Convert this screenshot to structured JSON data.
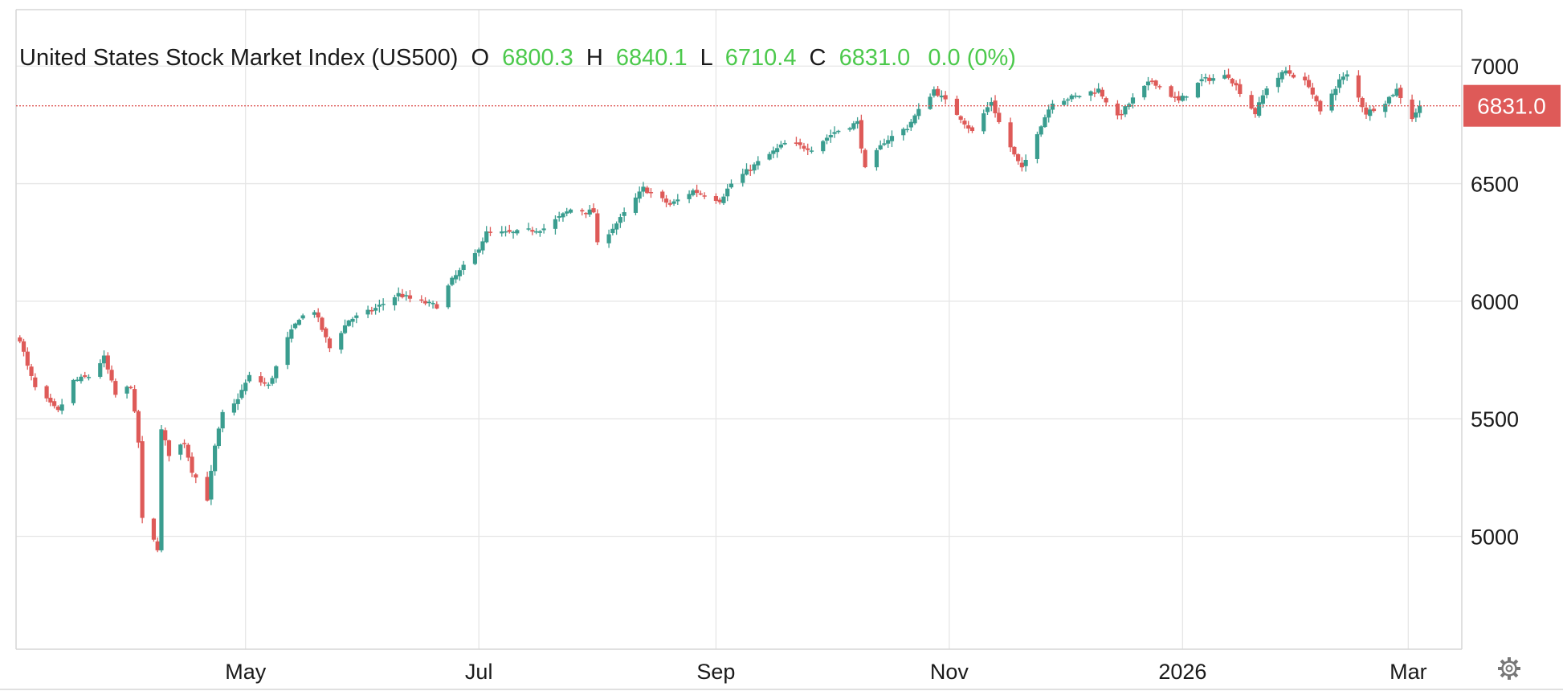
{
  "chart_data": {
    "type": "candlestick",
    "title": "United States Stock Market Index (US500)",
    "ohlc_header": {
      "o_label": "O",
      "o_value": "6800.3",
      "h_label": "H",
      "h_value": "6840.1",
      "l_label": "L",
      "l_value": "6710.4",
      "c_label": "C",
      "c_value": "6831.0",
      "change": "0.0 (0%)"
    },
    "last_price": 6831.0,
    "last_price_label": "6831.0",
    "y_ticks": [
      5000,
      5500,
      6000,
      6500,
      7000
    ],
    "y_tick_labels": [
      "5000",
      "5500",
      "6000",
      "6500",
      "7000"
    ],
    "ylim": [
      4520,
      7240
    ],
    "x_ticks": [
      {
        "label": "May",
        "date": "2025-05-01"
      },
      {
        "label": "Jul",
        "date": "2025-07-01"
      },
      {
        "label": "Sep",
        "date": "2025-09-01"
      },
      {
        "label": "Nov",
        "date": "2025-11-01"
      },
      {
        "label": "2026",
        "date": "2026-01-01"
      },
      {
        "label": "Mar",
        "date": "2026-03-01"
      }
    ],
    "xlim": [
      "2025-03-02",
      "2026-03-15"
    ],
    "price_path": [
      [
        "2025-03-03",
        5840
      ],
      [
        "2025-03-05",
        5720
      ],
      [
        "2025-03-07",
        5630
      ],
      [
        "2025-03-11",
        5560
      ],
      [
        "2025-03-13",
        5530
      ],
      [
        "2025-03-17",
        5660
      ],
      [
        "2025-03-21",
        5680
      ],
      [
        "2025-03-25",
        5760
      ],
      [
        "2025-03-28",
        5600
      ],
      [
        "2025-04-01",
        5640
      ],
      [
        "2025-04-03",
        5400
      ],
      [
        "2025-04-04",
        5070
      ],
      [
        "2025-04-08",
        4950
      ],
      [
        "2025-04-09",
        5450
      ],
      [
        "2025-04-11",
        5350
      ],
      [
        "2025-04-15",
        5400
      ],
      [
        "2025-04-17",
        5280
      ],
      [
        "2025-04-21",
        5160
      ],
      [
        "2025-04-23",
        5380
      ],
      [
        "2025-04-25",
        5520
      ],
      [
        "2025-04-28",
        5560
      ],
      [
        "2025-05-02",
        5680
      ],
      [
        "2025-05-07",
        5640
      ],
      [
        "2025-05-12",
        5840
      ],
      [
        "2025-05-15",
        5930
      ],
      [
        "2025-05-19",
        5960
      ],
      [
        "2025-05-23",
        5800
      ],
      [
        "2025-05-28",
        5920
      ],
      [
        "2025-06-03",
        5960
      ],
      [
        "2025-06-10",
        6030
      ],
      [
        "2025-06-13",
        6010
      ],
      [
        "2025-06-20",
        5980
      ],
      [
        "2025-06-24",
        6090
      ],
      [
        "2025-06-30",
        6200
      ],
      [
        "2025-07-03",
        6290
      ],
      [
        "2025-07-10",
        6290
      ],
      [
        "2025-07-18",
        6310
      ],
      [
        "2025-07-25",
        6390
      ],
      [
        "2025-07-31",
        6380
      ],
      [
        "2025-08-01",
        6240
      ],
      [
        "2025-08-07",
        6350
      ],
      [
        "2025-08-13",
        6480
      ],
      [
        "2025-08-20",
        6410
      ],
      [
        "2025-08-26",
        6470
      ],
      [
        "2025-09-02",
        6430
      ],
      [
        "2025-09-05",
        6500
      ],
      [
        "2025-09-12",
        6590
      ],
      [
        "2025-09-19",
        6670
      ],
      [
        "2025-09-26",
        6650
      ],
      [
        "2025-10-02",
        6720
      ],
      [
        "2025-10-08",
        6760
      ],
      [
        "2025-10-10",
        6560
      ],
      [
        "2025-10-15",
        6680
      ],
      [
        "2025-10-21",
        6740
      ],
      [
        "2025-10-24",
        6810
      ],
      [
        "2025-10-28",
        6900
      ],
      [
        "2025-10-31",
        6850
      ],
      [
        "2025-11-04",
        6780
      ],
      [
        "2025-11-07",
        6720
      ],
      [
        "2025-11-12",
        6850
      ],
      [
        "2025-11-14",
        6760
      ],
      [
        "2025-11-18",
        6620
      ],
      [
        "2025-11-20",
        6560
      ],
      [
        "2025-11-24",
        6720
      ],
      [
        "2025-11-28",
        6850
      ],
      [
        "2025-12-04",
        6870
      ],
      [
        "2025-12-10",
        6900
      ],
      [
        "2025-12-15",
        6780
      ],
      [
        "2025-12-19",
        6860
      ],
      [
        "2025-12-24",
        6940
      ],
      [
        "2025-12-31",
        6850
      ],
      [
        "2026-01-06",
        6940
      ],
      [
        "2026-01-13",
        6960
      ],
      [
        "2026-01-20",
        6800
      ],
      [
        "2026-01-23",
        6910
      ],
      [
        "2026-01-28",
        6980
      ],
      [
        "2026-02-03",
        6920
      ],
      [
        "2026-02-06",
        6800
      ],
      [
        "2026-02-11",
        6940
      ],
      [
        "2026-02-13",
        6960
      ],
      [
        "2026-02-18",
        6800
      ],
      [
        "2026-02-23",
        6850
      ],
      [
        "2026-02-26",
        6900
      ],
      [
        "2026-03-02",
        6780
      ],
      [
        "2026-03-04",
        6831
      ]
    ]
  },
  "icons": {
    "settings": "gear-icon"
  },
  "colors": {
    "up": "#3a9d8f",
    "down": "#de5a58",
    "last_price_line": "#de5a58",
    "header_values": "#4cc94c"
  }
}
